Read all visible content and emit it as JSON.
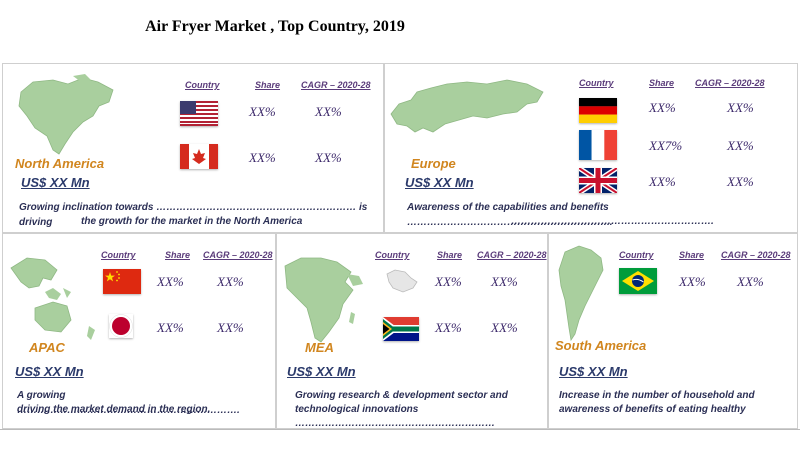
{
  "title": "Air Fryer Market , Top Country, 2019",
  "headers": {
    "country": "Country",
    "share": "Share",
    "cagr": "CAGR – 2020-28"
  },
  "regions": {
    "north_america": {
      "name": "North America",
      "market": "US$ XX Mn",
      "rows": [
        {
          "flag": "usa-flag",
          "share": "XX%",
          "cagr": "XX%"
        },
        {
          "flag": "canada-flag",
          "share": "XX%",
          "cagr": "XX%"
        }
      ],
      "desc_line1": "Growing inclination towards …………………………………………………… is driving",
      "desc_line2": "the growth for the market in the North America"
    },
    "europe": {
      "name": "Europe",
      "market": "US$ XX Mn",
      "rows": [
        {
          "flag": "germany-flag",
          "share": "XX%",
          "cagr": "XX%"
        },
        {
          "flag": "france-flag",
          "share": "XX7%",
          "cagr": "XX%"
        },
        {
          "flag": "uk-flag",
          "share": "XX%",
          "cagr": "XX%"
        }
      ],
      "desc_line1": "Awareness of the capabilities and benefits ……………………………………………………..",
      "desc_line2": "……………………………………………………."
    },
    "apac": {
      "name": "APAC",
      "market": "US$ XX Mn",
      "rows": [
        {
          "flag": "china-flag",
          "share": "XX%",
          "cagr": "XX%"
        },
        {
          "flag": "japan-flag",
          "share": "XX%",
          "cagr": "XX%"
        }
      ],
      "desc_line1": "A growing ………………………………………………………….",
      "desc_line2": "driving the market demand in the region."
    },
    "mea": {
      "name": "MEA",
      "market": "US$ XX Mn",
      "rows": [
        {
          "flag": "saudi-arabia-map",
          "share": "XX%",
          "cagr": "XX%"
        },
        {
          "flag": "south-africa-flag",
          "share": "XX%",
          "cagr": "XX%"
        }
      ],
      "desc_line1": "Growing research & development sector and",
      "desc_line2": "technological innovations",
      "desc_line3": "……………………………………………………"
    },
    "south_america": {
      "name": "South America",
      "market": "US$ XX Mn",
      "rows": [
        {
          "flag": "brazil-flag",
          "share": "XX%",
          "cagr": "XX%"
        }
      ],
      "desc_line1": "Increase in the number of household and",
      "desc_line2": "awareness of benefits of eating healthy"
    }
  },
  "colors": {
    "region_name": "#d1861f",
    "value_text": "#3d2a6b",
    "header_text": "#5a3b7a",
    "map_green": "#a9cf9e"
  }
}
